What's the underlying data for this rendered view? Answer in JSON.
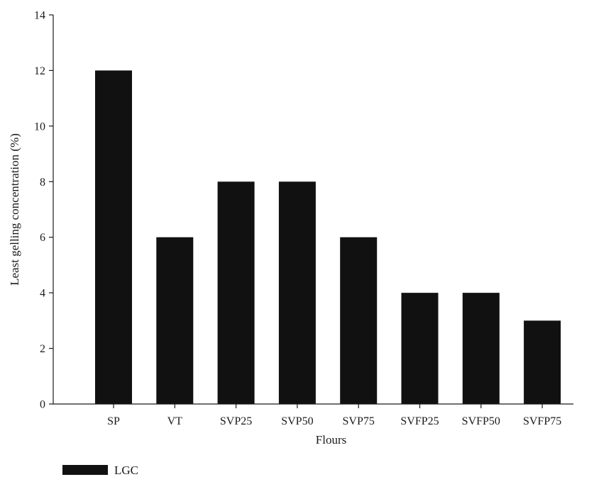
{
  "chart_data": {
    "type": "bar",
    "title": "",
    "xlabel": "Flours",
    "ylabel": "Least gelling concentration (%)",
    "categories": [
      "SP",
      "VT",
      "SVP25",
      "SVP50",
      "SVP75",
      "SVFP25",
      "SVFP50",
      "SVFP75"
    ],
    "series": [
      {
        "name": "LGC",
        "values": [
          12,
          6,
          8,
          8,
          6,
          4,
          4,
          3
        ]
      }
    ],
    "ylim": [
      0,
      14
    ],
    "yticks": [
      0,
      2,
      4,
      6,
      8,
      10,
      12,
      14
    ],
    "grid": false,
    "legend": "bottom-left",
    "bar_color": "#111111"
  }
}
